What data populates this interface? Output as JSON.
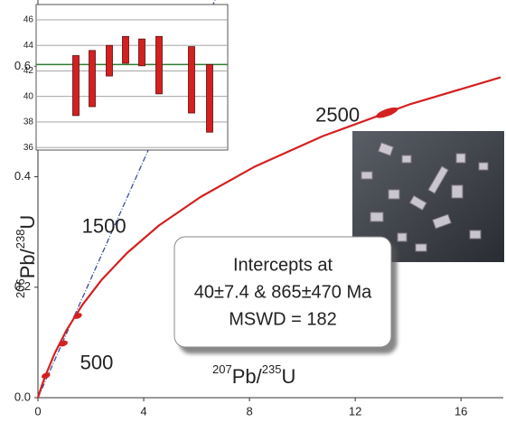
{
  "chart_data": {
    "type": "concordia",
    "xlim": [
      0,
      17.6
    ],
    "ylim": [
      0,
      0.72
    ],
    "xticks": [
      0,
      4,
      8,
      12,
      16
    ],
    "yticks": [
      {
        "value": 0,
        "label": "0.0"
      },
      0.2,
      0.4,
      0.6
    ],
    "x_label": [
      "207",
      "Pb/",
      "235",
      "U"
    ],
    "y_label": [
      "206",
      "Pb/",
      "238",
      "U"
    ],
    "concordia": {
      "color": "#d42020",
      "t": [
        0,
        125,
        250,
        500,
        750,
        1000,
        1250,
        1500,
        1750,
        2000,
        2250,
        2500,
        2750,
        2950
      ],
      "x": [
        0,
        0.131,
        0.279,
        0.637,
        1.093,
        1.677,
        2.42,
        3.37,
        4.58,
        6.16,
        8.17,
        10.77,
        14.09,
        17.5
      ],
      "y": [
        0,
        0.0196,
        0.0395,
        0.0806,
        0.1233,
        0.1678,
        0.214,
        0.262,
        0.3119,
        0.3637,
        0.4176,
        0.4735,
        0.5316,
        0.58
      ]
    },
    "age_labels": [
      500,
      1500,
      2500
    ],
    "discordia": {
      "color": "#3a4fa0",
      "x": [
        0,
        6.7
      ],
      "y": [
        0,
        0.72
      ]
    },
    "points": {
      "color": "#d42020",
      "x": [
        0.3,
        0.96,
        1.5,
        13.2
      ],
      "y": [
        0.04,
        0.098,
        0.148,
        0.516
      ]
    },
    "annotation": [
      "Intercepts at",
      "40±7.4 & 865±470 Ma",
      "MSWD = 182"
    ],
    "inset": {
      "ylim": [
        35.8,
        47.2
      ],
      "yticks": [
        36,
        38,
        40,
        42,
        44,
        46
      ],
      "mean": 42.5,
      "mean_color": "#2e7d32",
      "bar_color": "#d42020",
      "low": [
        38.5,
        39.2,
        41.6,
        42.6,
        42.4,
        40.2,
        38.7,
        37.2
      ],
      "high": [
        43.2,
        43.6,
        44.0,
        44.7,
        44.5,
        44.7,
        43.9,
        42.5
      ]
    }
  }
}
